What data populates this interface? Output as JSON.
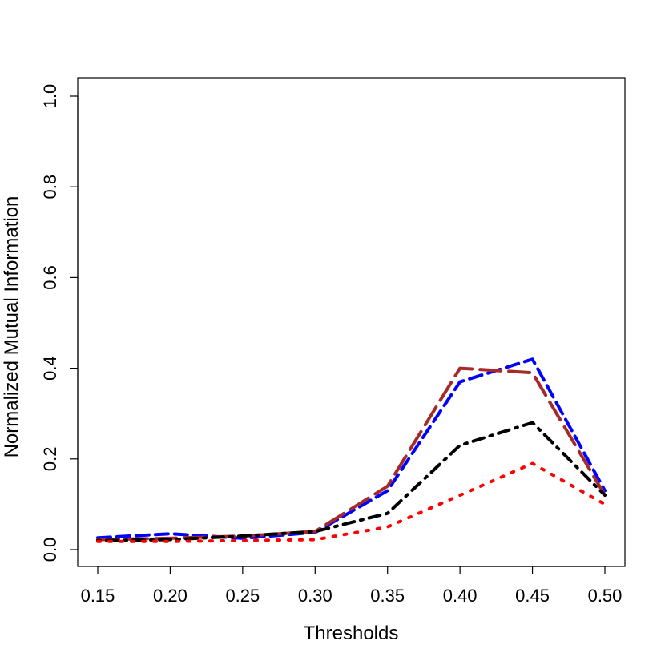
{
  "chart_data": {
    "type": "line",
    "title": "",
    "xlabel": "Thresholds",
    "ylabel": "Normalized Mutual Information",
    "xlim": [
      0.15,
      0.5
    ],
    "ylim": [
      0.0,
      1.0
    ],
    "x_ticks": [
      "0.15",
      "0.20",
      "0.25",
      "0.30",
      "0.35",
      "0.40",
      "0.45",
      "0.50"
    ],
    "y_ticks": [
      "0.0",
      "0.2",
      "0.4",
      "0.6",
      "0.8",
      "1.0"
    ],
    "grid": false,
    "legend": "none",
    "x": [
      0.15,
      0.2,
      0.25,
      0.3,
      0.35,
      0.4,
      0.45,
      0.5
    ],
    "series": [
      {
        "color": "#0000ff",
        "dash": "dashed",
        "values": [
          0.026,
          0.035,
          0.025,
          0.038,
          0.13,
          0.37,
          0.42,
          0.13
        ]
      },
      {
        "color": "#a52a2a",
        "dash": "longdash",
        "values": [
          0.022,
          0.025,
          0.03,
          0.04,
          0.14,
          0.4,
          0.39,
          0.12
        ]
      },
      {
        "color": "#000000",
        "dash": "dotdash",
        "values": [
          0.02,
          0.022,
          0.03,
          0.04,
          0.08,
          0.23,
          0.28,
          0.12
        ]
      },
      {
        "color": "#ff0000",
        "dash": "dotted",
        "values": [
          0.018,
          0.018,
          0.02,
          0.022,
          0.05,
          0.12,
          0.19,
          0.1
        ]
      }
    ]
  }
}
